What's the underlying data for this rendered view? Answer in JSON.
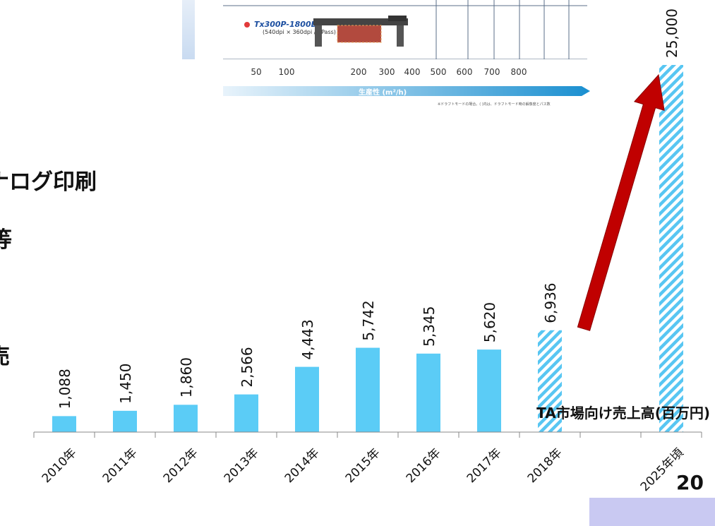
{
  "inset": {
    "printer_name": "Tx300P-1800B",
    "printer_spec": "(540dpi × 360dpi / 2Pass)",
    "productivity_ticks": [
      "50",
      "100",
      "200",
      "300",
      "400",
      "500",
      "600",
      "700",
      "800"
    ],
    "productivity_label": "生産性 (m²/h)",
    "footnote": "※ドラフトモードの場合。( )内は、ドラフトモード時の解像度とパス数"
  },
  "left_text": {
    "line1": "ナログ印刷",
    "line2": "等",
    "line3": "売"
  },
  "slide_number": "20",
  "colors": {
    "bar": "#5bccf6",
    "hatch": "#58c6f2",
    "arrow": "#c00000",
    "slide_bar": "#c9c9f2"
  },
  "chart_data": {
    "type": "bar",
    "title": "TA市場向け売上高(百万円)",
    "categories": [
      "2010年",
      "2011年",
      "2012年",
      "2013年",
      "2014年",
      "2015年",
      "2016年",
      "2017年",
      "2018年",
      "",
      "2025年頃"
    ],
    "values": [
      1088,
      1450,
      1860,
      2566,
      4443,
      5742,
      5345,
      5620,
      6936,
      null,
      25000
    ],
    "value_labels": [
      "1,088",
      "1,450",
      "1,860",
      "2,566",
      "4,443",
      "5,742",
      "5,345",
      "5,620",
      "6,936",
      "",
      "25,000"
    ],
    "forecast": [
      false,
      false,
      false,
      false,
      false,
      false,
      false,
      false,
      true,
      false,
      true
    ],
    "arrow": {
      "from": "2018年",
      "to": "2025年頃"
    },
    "ylim": [
      0,
      25000
    ]
  }
}
